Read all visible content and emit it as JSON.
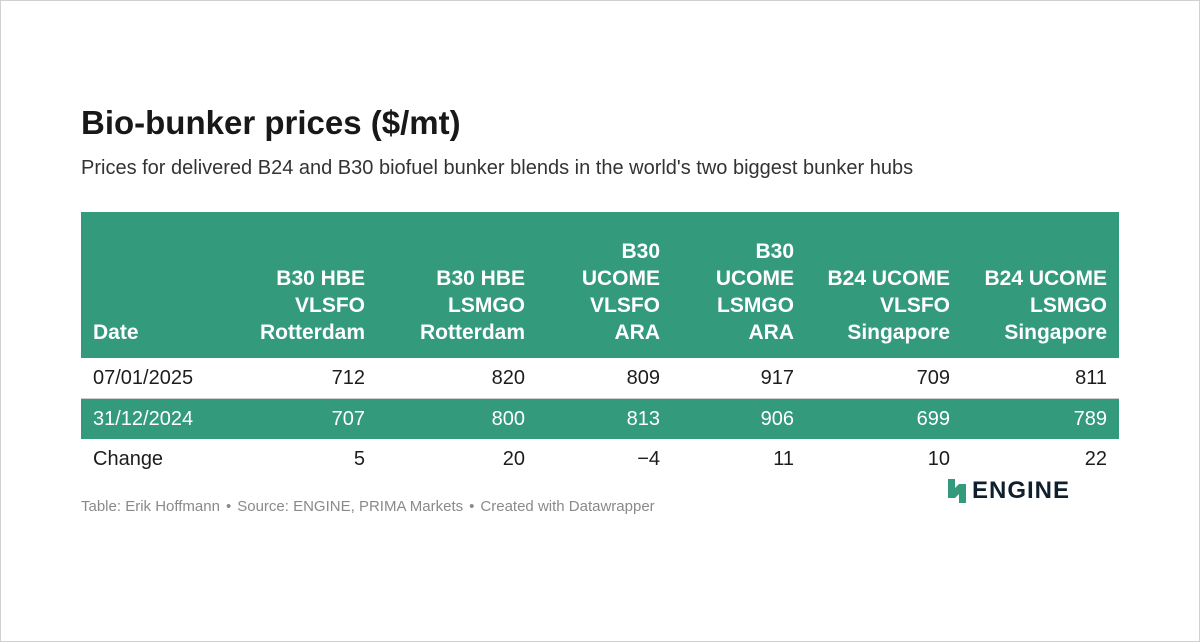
{
  "title": "Bio-bunker prices ($/mt)",
  "subtitle": "Prices for delivered B24 and B30 biofuel bunker blends in the world's two biggest bunker hubs",
  "chart_data": {
    "type": "table",
    "title": "Bio-bunker prices ($/mt)",
    "columns": [
      "Date",
      "B30 HBE VLSFO Rotterdam",
      "B30 HBE LSMGO Rotterdam",
      "B30 UCOME VLSFO ARA",
      "B30 UCOME LSMGO ARA",
      "B24 UCOME VLSFO Singapore",
      "B24 UCOME LSMGO Singapore"
    ],
    "rows": [
      [
        "07/01/2025",
        "712",
        "820",
        "809",
        "917",
        "709",
        "811"
      ],
      [
        "31/12/2024",
        "707",
        "800",
        "813",
        "906",
        "699",
        "789"
      ],
      [
        "Change",
        "5",
        "20",
        "−4",
        "11",
        "10",
        "22"
      ]
    ]
  },
  "footer": {
    "table_credit": "Table: Erik Hoffmann",
    "source": "Source: ENGINE, PRIMA Markets",
    "created": "Created with Datawrapper",
    "separator": "•"
  },
  "logo": {
    "text": "ENGINE",
    "icon": "engine-logo-icon",
    "color": "#339a7c"
  },
  "colors": {
    "header_bg": "#339a7c",
    "stripe_bg": "#339a7c",
    "header_text": "#ffffff"
  }
}
